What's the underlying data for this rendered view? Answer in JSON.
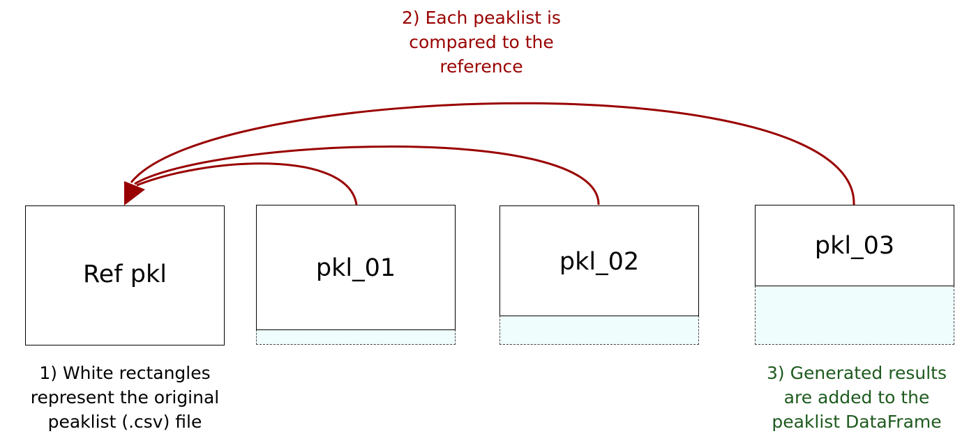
{
  "boxes": {
    "ref": "Ref pkl",
    "pkl1": "pkl_01",
    "pkl2": "pkl_02",
    "pkl3": "pkl_03"
  },
  "notes": {
    "compare": [
      "2) Each peaklist is",
      "compared to the",
      "reference"
    ],
    "white": [
      "1) White rectangles",
      "represent the original",
      "peaklist (.csv) file"
    ],
    "results": [
      "3) Generated results",
      "are added to the",
      "peaklist DataFrame"
    ]
  },
  "colors": {
    "arrow": "#990000",
    "compare_text": "#990000",
    "results_text": "#1e5a1e",
    "extension_fill": "#f0fdfd"
  }
}
